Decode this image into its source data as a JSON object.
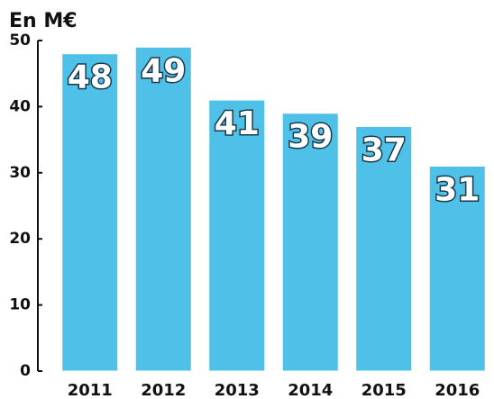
{
  "chart_data": {
    "type": "bar",
    "title": "En M€",
    "categories": [
      "2011",
      "2012",
      "2013",
      "2014",
      "2015",
      "2016"
    ],
    "values": [
      48,
      49,
      41,
      39,
      37,
      31
    ],
    "color": "#4fc1e9",
    "ylim": [
      0,
      50
    ],
    "yticks": [
      0,
      10,
      20,
      30,
      40,
      50
    ],
    "grid": false
  }
}
